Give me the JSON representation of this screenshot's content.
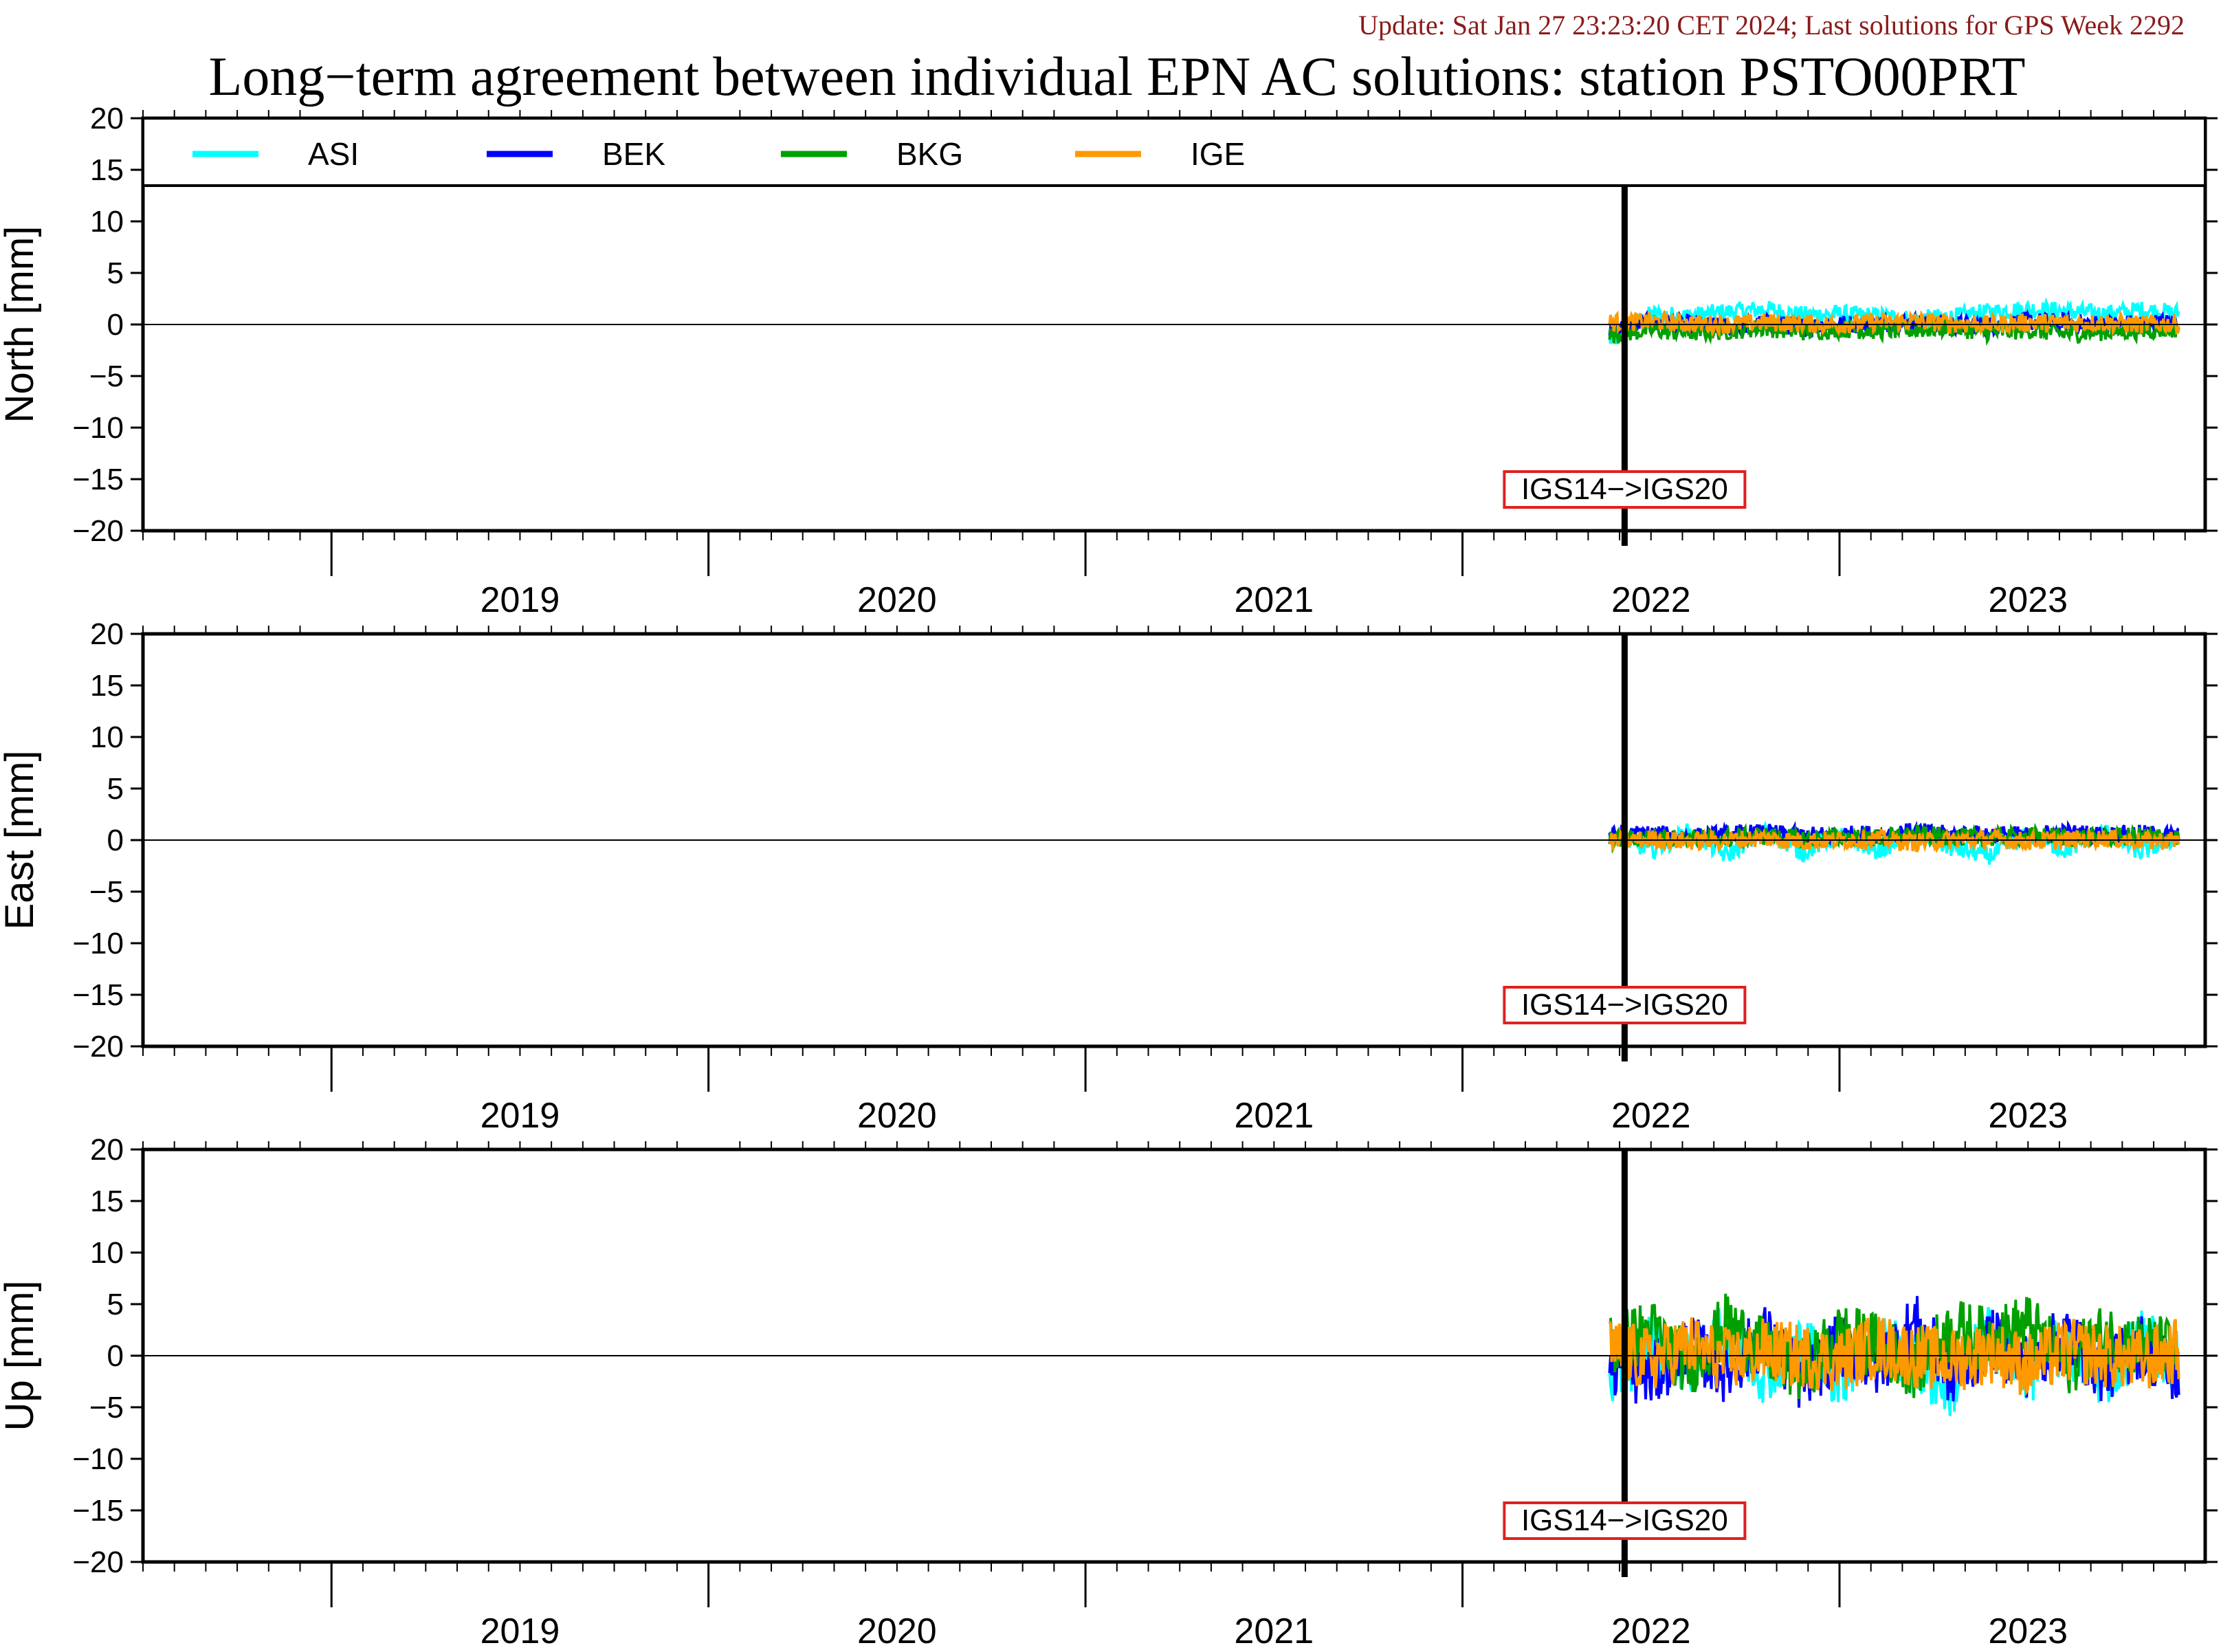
{
  "update_text": "Update: Sat Jan 27 23:23:20 CET 2024; Last solutions for GPS Week 2292",
  "title": "Long−term agreement between individual EPN AC solutions: station PSTO00PRT",
  "colors": {
    "update_text": "#8b1a1a",
    "frame": "#000000",
    "event_box": "#e02020",
    "zero_line": "#000000"
  },
  "chart_data": {
    "type": "line",
    "x_unit": "year",
    "xlim": [
      2018.5,
      2023.97
    ],
    "ylim": [
      -20,
      20
    ],
    "y_ticks": [
      20,
      15,
      10,
      5,
      0,
      -5,
      -10,
      -15,
      -20
    ],
    "year_labels": [
      "2019",
      "2020",
      "2021",
      "2022",
      "2023"
    ],
    "data_start": 2022.39,
    "data_end": 2023.9,
    "legend": {
      "placement": "top",
      "entries": [
        {
          "name": "ASI",
          "color": "#00ffff"
        },
        {
          "name": "BEK",
          "color": "#0000ff"
        },
        {
          "name": "BKG",
          "color": "#00a000"
        },
        {
          "name": "IGE",
          "color": "#ff9900"
        }
      ]
    },
    "event": {
      "x": 2022.43,
      "label": "IGS14−>IGS20"
    },
    "panels": [
      {
        "ylabel": "North [mm]",
        "series": [
          {
            "name": "ASI",
            "color": "#00ffff",
            "x": [
              2022.4,
              2022.5,
              2022.6,
              2022.7,
              2022.8,
              2022.9,
              2023.0,
              2023.1,
              2023.2,
              2023.3,
              2023.4,
              2023.5,
              2023.6,
              2023.7,
              2023.8,
              2023.9
            ],
            "y": [
              -1.5,
              1.0,
              0.8,
              1.2,
              1.5,
              0.9,
              1.0,
              0.8,
              0.5,
              0.7,
              1.2,
              1.5,
              1.3,
              1.0,
              1.4,
              1.1
            ]
          },
          {
            "name": "BEK",
            "color": "#0000ff",
            "x": [
              2022.4,
              2022.5,
              2022.6,
              2022.7,
              2022.8,
              2022.9,
              2023.0,
              2023.1,
              2023.2,
              2023.3,
              2023.4,
              2023.5,
              2023.6,
              2023.7,
              2023.8,
              2023.9
            ],
            "y": [
              -0.5,
              0.2,
              0.0,
              -0.3,
              0.1,
              -0.2,
              0.0,
              0.1,
              0.2,
              0.0,
              -0.1,
              0.3,
              0.2,
              0.0,
              0.1,
              0.2
            ]
          },
          {
            "name": "BKG",
            "color": "#00a000",
            "x": [
              2022.4,
              2022.5,
              2022.6,
              2022.7,
              2022.8,
              2022.9,
              2023.0,
              2023.1,
              2023.2,
              2023.3,
              2023.4,
              2023.5,
              2023.6,
              2023.7,
              2023.8,
              2023.9
            ],
            "y": [
              -1.0,
              -0.5,
              -0.8,
              -0.6,
              -0.3,
              -0.7,
              -0.4,
              -0.6,
              -0.5,
              -0.3,
              -0.8,
              -0.5,
              -0.9,
              -0.7,
              -0.6,
              -0.4
            ]
          },
          {
            "name": "IGE",
            "color": "#ff9900",
            "x": [
              2022.4,
              2022.5,
              2022.6,
              2022.7,
              2022.8,
              2022.9,
              2023.0,
              2023.1,
              2023.2,
              2023.3,
              2023.4,
              2023.5,
              2023.6,
              2023.7,
              2023.8,
              2023.9
            ],
            "y": [
              0.2,
              0.3,
              0.1,
              0.0,
              0.2,
              0.1,
              0.0,
              0.2,
              0.3,
              0.1,
              0.0,
              0.2,
              0.1,
              0.2,
              0.0,
              0.1
            ]
          }
        ]
      },
      {
        "ylabel": "East [mm]",
        "series": [
          {
            "name": "ASI",
            "color": "#00ffff",
            "x": [
              2022.4,
              2022.5,
              2022.6,
              2022.7,
              2022.8,
              2022.9,
              2023.0,
              2023.1,
              2023.2,
              2023.3,
              2023.4,
              2023.5,
              2023.6,
              2023.7,
              2023.8,
              2023.9
            ],
            "y": [
              0.5,
              -1.0,
              0.8,
              -1.5,
              1.0,
              -1.2,
              0.5,
              -1.0,
              0.6,
              -0.8,
              -1.5,
              0.5,
              -1.0,
              0.8,
              -1.2,
              0.4
            ]
          },
          {
            "name": "BEK",
            "color": "#0000ff",
            "x": [
              2022.4,
              2022.5,
              2022.6,
              2022.7,
              2022.8,
              2022.9,
              2023.0,
              2023.1,
              2023.2,
              2023.3,
              2023.4,
              2023.5,
              2023.6,
              2023.7,
              2023.8,
              2023.9
            ],
            "y": [
              0.4,
              0.6,
              0.3,
              0.5,
              0.7,
              0.4,
              0.5,
              0.6,
              0.8,
              0.5,
              0.6,
              0.4,
              0.7,
              0.5,
              0.6,
              0.4
            ]
          },
          {
            "name": "BKG",
            "color": "#00a000",
            "x": [
              2022.4,
              2022.5,
              2022.6,
              2022.7,
              2022.8,
              2022.9,
              2023.0,
              2023.1,
              2023.2,
              2023.3,
              2023.4,
              2023.5,
              2023.6,
              2023.7,
              2023.8,
              2023.9
            ],
            "y": [
              0.0,
              0.3,
              0.1,
              0.2,
              0.4,
              0.1,
              0.3,
              0.2,
              0.5,
              0.3,
              0.2,
              0.4,
              0.3,
              0.2,
              0.4,
              0.2
            ]
          },
          {
            "name": "IGE",
            "color": "#ff9900",
            "x": [
              2022.4,
              2022.5,
              2022.6,
              2022.7,
              2022.8,
              2022.9,
              2023.0,
              2023.1,
              2023.2,
              2023.3,
              2023.4,
              2023.5,
              2023.6,
              2023.7,
              2023.8,
              2023.9
            ],
            "y": [
              -0.2,
              0.1,
              -0.1,
              0.0,
              0.2,
              -0.1,
              0.0,
              0.1,
              -0.2,
              0.0,
              0.1,
              -0.1,
              0.0,
              0.2,
              -0.1,
              0.0
            ]
          }
        ]
      },
      {
        "ylabel": "Up [mm]",
        "series": [
          {
            "name": "ASI",
            "color": "#00ffff",
            "x": [
              2022.4,
              2022.5,
              2022.6,
              2022.7,
              2022.8,
              2022.9,
              2023.0,
              2023.1,
              2023.2,
              2023.3,
              2023.4,
              2023.5,
              2023.6,
              2023.7,
              2023.8,
              2023.9
            ],
            "y": [
              -2.0,
              1.5,
              -1.0,
              2.0,
              -1.5,
              1.0,
              -2.0,
              1.5,
              -1.0,
              -3.0,
              2.0,
              -1.5,
              1.0,
              -2.0,
              1.5,
              -0.5
            ]
          },
          {
            "name": "BEK",
            "color": "#0000ff",
            "x": [
              2022.4,
              2022.5,
              2022.6,
              2022.7,
              2022.8,
              2022.9,
              2023.0,
              2023.1,
              2023.2,
              2023.3,
              2023.4,
              2023.5,
              2023.6,
              2023.7,
              2023.8,
              2023.9
            ],
            "y": [
              -1.0,
              -2.0,
              1.0,
              -1.5,
              2.0,
              -2.5,
              1.0,
              -1.0,
              3.0,
              -2.0,
              1.5,
              -1.0,
              2.0,
              -1.5,
              1.0,
              -2.0
            ]
          },
          {
            "name": "BKG",
            "color": "#00a000",
            "x": [
              2022.4,
              2022.5,
              2022.6,
              2022.7,
              2022.8,
              2022.9,
              2023.0,
              2023.1,
              2023.2,
              2023.3,
              2023.4,
              2023.5,
              2023.6,
              2023.7,
              2023.8,
              2023.9
            ],
            "y": [
              1.0,
              2.5,
              -1.0,
              3.0,
              0.5,
              -1.5,
              2.0,
              1.0,
              -1.0,
              2.5,
              1.5,
              3.0,
              -1.0,
              2.0,
              1.0,
              0.5
            ]
          },
          {
            "name": "IGE",
            "color": "#ff9900",
            "x": [
              2022.4,
              2022.5,
              2022.6,
              2022.7,
              2022.8,
              2022.9,
              2023.0,
              2023.1,
              2023.2,
              2023.3,
              2023.4,
              2023.5,
              2023.6,
              2023.7,
              2023.8,
              2023.9
            ],
            "y": [
              0.5,
              -0.5,
              1.0,
              -0.5,
              0.5,
              0.0,
              -0.5,
              1.0,
              0.0,
              -0.5,
              0.5,
              -1.0,
              0.5,
              0.0,
              -0.5,
              0.5
            ]
          }
        ]
      }
    ]
  }
}
